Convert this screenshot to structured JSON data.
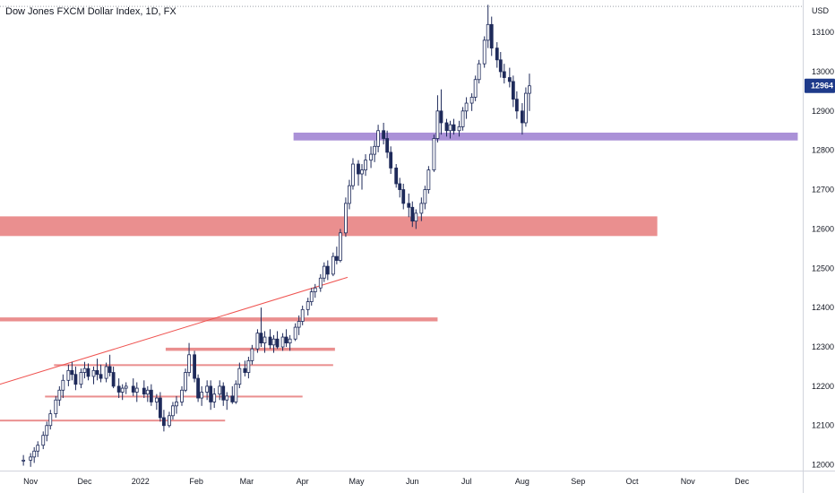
{
  "header": {
    "symbol_title": "Dow Jones FXCM Dollar Index, 1D, FX"
  },
  "price_axis": {
    "currency": "USD",
    "last_price_label": "12964"
  },
  "chart_data": {
    "type": "candlestick",
    "title": "Dow Jones FXCM Dollar Index, 1D, FX",
    "ylabel": "USD",
    "ylim": [
      11990,
      13180
    ],
    "y_ticks": [
      12000,
      12100,
      12200,
      12300,
      12400,
      12500,
      12600,
      12700,
      12800,
      12900,
      13000,
      13100
    ],
    "x_ticks": [
      "Nov",
      "Dec",
      "2022",
      "Feb",
      "Mar",
      "Apr",
      "May",
      "Jun",
      "Jul",
      "Aug",
      "Sep",
      "Oct",
      "Nov",
      "Dec"
    ],
    "x_tick_dates": [
      "2021-11-01",
      "2021-12-01",
      "2022-01-01",
      "2022-02-01",
      "2022-03-01",
      "2022-04-01",
      "2022-05-01",
      "2022-06-01",
      "2022-07-01",
      "2022-08-01",
      "2022-09-01",
      "2022-10-01",
      "2022-11-01",
      "2022-12-01"
    ],
    "last_price": 12964,
    "price_line": 13166,
    "colors": {
      "up": "#26a69a",
      "down": "#131722",
      "candle": "#1e2a5a",
      "zone_red": "#e57373",
      "zone_purple": "#9575cd",
      "trend": "#ef5350"
    },
    "zones": [
      {
        "label": "",
        "color": "#9575cd",
        "y_low": 12825,
        "y_high": 12845,
        "from": "2022-03-27",
        "to": "2023-01-01"
      },
      {
        "label": "",
        "color": "#e57373",
        "y_low": 12582,
        "y_high": 12632,
        "from": "2021-10-15",
        "to": "2022-10-15"
      },
      {
        "label": "",
        "color": "#e57373",
        "y_low": 12365,
        "y_high": 12375,
        "from": "2021-10-15",
        "to": "2022-06-15"
      },
      {
        "label": "",
        "color": "#e57373",
        "y_low": 12290,
        "y_high": 12298,
        "from": "2022-01-15",
        "to": "2022-04-19"
      },
      {
        "label": "",
        "color": "#e57373",
        "y_low": 12252,
        "y_high": 12256,
        "from": "2021-11-14",
        "to": "2022-04-18"
      },
      {
        "label": "",
        "color": "#e57373",
        "y_low": 12174,
        "y_high": 12176,
        "from": "2021-11-09",
        "to": "2022-04-01"
      },
      {
        "label": "",
        "color": "#e57373",
        "y_low": 12113,
        "y_high": 12115,
        "from": "2021-10-15",
        "to": "2022-02-17"
      }
    ],
    "trendline": {
      "from": [
        "2021-10-15",
        12205
      ],
      "to": [
        "2022-04-26",
        12477
      ]
    },
    "series": [
      {
        "ohlc": [
          [
            "2021-10-28",
            12010,
            12025,
            11998,
            12012
          ],
          [
            "2021-11-01",
            12012,
            12030,
            11995,
            12020
          ],
          [
            "2021-11-03",
            12020,
            12045,
            12005,
            12035
          ],
          [
            "2021-11-05",
            12035,
            12060,
            12020,
            12050
          ],
          [
            "2021-11-08",
            12050,
            12085,
            12040,
            12075
          ],
          [
            "2021-11-10",
            12075,
            12110,
            12060,
            12100
          ],
          [
            "2021-11-12",
            12100,
            12140,
            12090,
            12130
          ],
          [
            "2021-11-15",
            12130,
            12175,
            12120,
            12165
          ],
          [
            "2021-11-17",
            12165,
            12200,
            12150,
            12190
          ],
          [
            "2021-11-19",
            12190,
            12230,
            12170,
            12215
          ],
          [
            "2021-11-22",
            12215,
            12255,
            12200,
            12240
          ],
          [
            "2021-11-24",
            12240,
            12262,
            12215,
            12230
          ],
          [
            "2021-11-26",
            12230,
            12250,
            12190,
            12205
          ],
          [
            "2021-11-29",
            12205,
            12245,
            12195,
            12235
          ],
          [
            "2021-12-01",
            12235,
            12262,
            12220,
            12245
          ],
          [
            "2021-12-03",
            12245,
            12258,
            12215,
            12225
          ],
          [
            "2021-12-06",
            12225,
            12250,
            12205,
            12240
          ],
          [
            "2021-12-08",
            12240,
            12270,
            12215,
            12230
          ],
          [
            "2021-12-10",
            12230,
            12255,
            12210,
            12220
          ],
          [
            "2021-12-13",
            12220,
            12260,
            12210,
            12250
          ],
          [
            "2021-12-15",
            12250,
            12280,
            12225,
            12235
          ],
          [
            "2021-12-17",
            12235,
            12250,
            12195,
            12200
          ],
          [
            "2021-12-20",
            12200,
            12220,
            12170,
            12185
          ],
          [
            "2021-12-22",
            12185,
            12205,
            12165,
            12195
          ],
          [
            "2021-12-24",
            12195,
            12210,
            12180,
            12200
          ],
          [
            "2021-12-28",
            12200,
            12220,
            12175,
            12185
          ],
          [
            "2021-12-30",
            12185,
            12210,
            12160,
            12195
          ],
          [
            "2022-01-03",
            12195,
            12215,
            12170,
            12180
          ],
          [
            "2022-01-05",
            12180,
            12200,
            12160,
            12190
          ],
          [
            "2022-01-07",
            12190,
            12205,
            12150,
            12160
          ],
          [
            "2022-01-10",
            12160,
            12180,
            12140,
            12170
          ],
          [
            "2022-01-12",
            12170,
            12185,
            12110,
            12120
          ],
          [
            "2022-01-14",
            12120,
            12140,
            12085,
            12100
          ],
          [
            "2022-01-17",
            12100,
            12135,
            12095,
            12125
          ],
          [
            "2022-01-19",
            12125,
            12160,
            12115,
            12150
          ],
          [
            "2022-01-21",
            12150,
            12175,
            12130,
            12160
          ],
          [
            "2022-01-24",
            12160,
            12200,
            12150,
            12190
          ],
          [
            "2022-01-26",
            12190,
            12245,
            12185,
            12235
          ],
          [
            "2022-01-28",
            12235,
            12310,
            12225,
            12280
          ],
          [
            "2022-01-31",
            12280,
            12290,
            12210,
            12220
          ],
          [
            "2022-02-02",
            12220,
            12230,
            12160,
            12170
          ],
          [
            "2022-02-04",
            12170,
            12200,
            12150,
            12185
          ],
          [
            "2022-02-07",
            12185,
            12215,
            12165,
            12200
          ],
          [
            "2022-02-09",
            12200,
            12215,
            12140,
            12160
          ],
          [
            "2022-02-11",
            12160,
            12195,
            12145,
            12180
          ],
          [
            "2022-02-14",
            12180,
            12215,
            12165,
            12200
          ],
          [
            "2022-02-16",
            12200,
            12210,
            12150,
            12165
          ],
          [
            "2022-02-18",
            12165,
            12185,
            12140,
            12175
          ],
          [
            "2022-02-21",
            12175,
            12200,
            12155,
            12160
          ],
          [
            "2022-02-23",
            12160,
            12215,
            12155,
            12205
          ],
          [
            "2022-02-25",
            12205,
            12260,
            12195,
            12245
          ],
          [
            "2022-02-28",
            12245,
            12265,
            12225,
            12235
          ],
          [
            "2022-03-02",
            12235,
            12275,
            12220,
            12265
          ],
          [
            "2022-03-04",
            12265,
            12305,
            12255,
            12295
          ],
          [
            "2022-03-07",
            12295,
            12345,
            12285,
            12335
          ],
          [
            "2022-03-09",
            12335,
            12400,
            12300,
            12310
          ],
          [
            "2022-03-11",
            12310,
            12340,
            12285,
            12325
          ],
          [
            "2022-03-14",
            12325,
            12345,
            12295,
            12305
          ],
          [
            "2022-03-16",
            12305,
            12330,
            12285,
            12320
          ],
          [
            "2022-03-18",
            12320,
            12340,
            12295,
            12300
          ],
          [
            "2022-03-21",
            12300,
            12335,
            12290,
            12325
          ],
          [
            "2022-03-23",
            12325,
            12345,
            12300,
            12310
          ],
          [
            "2022-03-25",
            12310,
            12330,
            12290,
            12320
          ],
          [
            "2022-03-28",
            12320,
            12360,
            12315,
            12350
          ],
          [
            "2022-03-30",
            12350,
            12380,
            12330,
            12365
          ],
          [
            "2022-04-01",
            12365,
            12405,
            12355,
            12395
          ],
          [
            "2022-04-04",
            12395,
            12425,
            12380,
            12415
          ],
          [
            "2022-04-06",
            12415,
            12450,
            12405,
            12440
          ],
          [
            "2022-04-08",
            12440,
            12460,
            12425,
            12450
          ],
          [
            "2022-04-11",
            12450,
            12485,
            12440,
            12475
          ],
          [
            "2022-04-13",
            12475,
            12515,
            12465,
            12505
          ],
          [
            "2022-04-15",
            12505,
            12520,
            12470,
            12485
          ],
          [
            "2022-04-18",
            12485,
            12540,
            12480,
            12530
          ],
          [
            "2022-04-20",
            12530,
            12555,
            12510,
            12520
          ],
          [
            "2022-04-22",
            12520,
            12600,
            12515,
            12590
          ],
          [
            "2022-04-25",
            12590,
            12680,
            12580,
            12665
          ],
          [
            "2022-04-27",
            12665,
            12725,
            12650,
            12710
          ],
          [
            "2022-04-29",
            12710,
            12780,
            12700,
            12765
          ],
          [
            "2022-05-02",
            12765,
            12775,
            12710,
            12740
          ],
          [
            "2022-05-04",
            12740,
            12765,
            12700,
            12750
          ],
          [
            "2022-05-06",
            12750,
            12790,
            12735,
            12775
          ],
          [
            "2022-05-09",
            12775,
            12810,
            12755,
            12790
          ],
          [
            "2022-05-11",
            12790,
            12825,
            12770,
            12810
          ],
          [
            "2022-05-13",
            12810,
            12865,
            12795,
            12850
          ],
          [
            "2022-05-16",
            12850,
            12870,
            12815,
            12830
          ],
          [
            "2022-05-18",
            12830,
            12850,
            12780,
            12795
          ],
          [
            "2022-05-20",
            12795,
            12810,
            12740,
            12755
          ],
          [
            "2022-05-23",
            12755,
            12765,
            12705,
            12715
          ],
          [
            "2022-05-25",
            12715,
            12730,
            12680,
            12700
          ],
          [
            "2022-05-27",
            12700,
            12715,
            12650,
            12665
          ],
          [
            "2022-05-30",
            12665,
            12690,
            12630,
            12655
          ],
          [
            "2022-06-01",
            12655,
            12670,
            12605,
            12620
          ],
          [
            "2022-06-03",
            12620,
            12650,
            12600,
            12640
          ],
          [
            "2022-06-06",
            12640,
            12680,
            12620,
            12665
          ],
          [
            "2022-06-08",
            12665,
            12710,
            12650,
            12700
          ],
          [
            "2022-06-10",
            12700,
            12760,
            12690,
            12750
          ],
          [
            "2022-06-13",
            12750,
            12840,
            12745,
            12830
          ],
          [
            "2022-06-15",
            12830,
            12940,
            12820,
            12900
          ],
          [
            "2022-06-17",
            12900,
            12955,
            12840,
            12870
          ],
          [
            "2022-06-20",
            12870,
            12880,
            12835,
            12850
          ],
          [
            "2022-06-22",
            12850,
            12875,
            12830,
            12865
          ],
          [
            "2022-06-24",
            12865,
            12880,
            12840,
            12850
          ],
          [
            "2022-06-27",
            12850,
            12875,
            12835,
            12860
          ],
          [
            "2022-06-29",
            12860,
            12910,
            12850,
            12900
          ],
          [
            "2022-07-01",
            12900,
            12935,
            12880,
            12920
          ],
          [
            "2022-07-04",
            12920,
            12945,
            12900,
            12935
          ],
          [
            "2022-07-06",
            12935,
            12990,
            12925,
            12980
          ],
          [
            "2022-07-08",
            12980,
            13030,
            12970,
            13020
          ],
          [
            "2022-07-11",
            13020,
            13090,
            13010,
            13080
          ],
          [
            "2022-07-13",
            13080,
            13170,
            13060,
            13120
          ],
          [
            "2022-07-15",
            13120,
            13140,
            13040,
            13060
          ],
          [
            "2022-07-18",
            13060,
            13075,
            13010,
            13030
          ],
          [
            "2022-07-20",
            13030,
            13050,
            12985,
            13000
          ],
          [
            "2022-07-22",
            13000,
            13020,
            12970,
            12985
          ],
          [
            "2022-07-25",
            12985,
            13010,
            12960,
            12975
          ],
          [
            "2022-07-27",
            12975,
            12990,
            12910,
            12930
          ],
          [
            "2022-07-29",
            12930,
            12950,
            12880,
            12900
          ],
          [
            "2022-08-01",
            12900,
            12920,
            12840,
            12870
          ],
          [
            "2022-08-03",
            12870,
            12960,
            12860,
            12945
          ],
          [
            "2022-08-05",
            12945,
            12995,
            12900,
            12964
          ]
        ]
      }
    ]
  }
}
